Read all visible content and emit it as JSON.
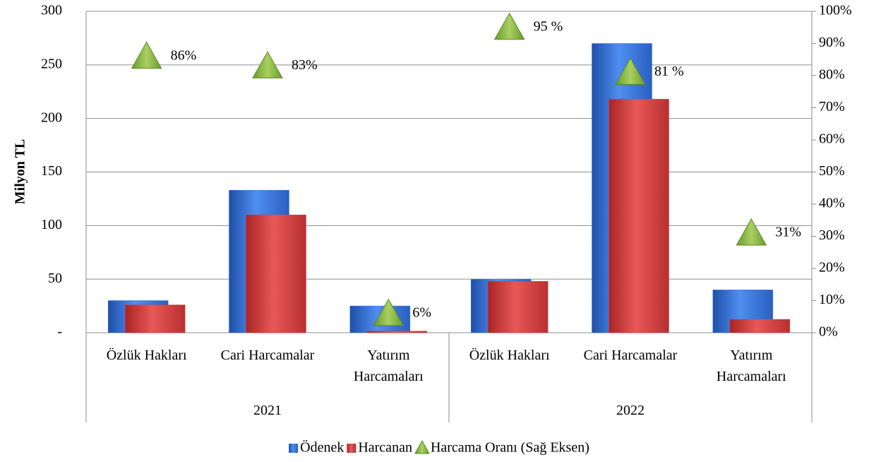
{
  "chart_data": {
    "type": "bar",
    "ylabel": "Milyon TL",
    "categories": [
      "Özlük Hakları",
      "Cari Harcamalar",
      "Yatırım Harcamaları",
      "Özlük Hakları",
      "Cari Harcamalar",
      "Yatırım Harcamaları"
    ],
    "groups": [
      "2021",
      "2022"
    ],
    "series": [
      {
        "name": "Ödenek",
        "color": "#3a78d8",
        "values": [
          30,
          133,
          25,
          50,
          270,
          40
        ]
      },
      {
        "name": "Harcanan",
        "color": "#d94040",
        "values": [
          26,
          110,
          1.5,
          48,
          218,
          12.5
        ]
      },
      {
        "name": "Harcama Oranı (Sağ Eksen)",
        "color": "#8ab84a",
        "axis": "y2",
        "values": [
          86,
          83,
          6,
          95,
          81,
          31
        ],
        "value_labels": [
          "86%",
          "83%",
          "6%",
          "95 %",
          "81 %",
          "31%"
        ]
      }
    ],
    "ylim": [
      0,
      300
    ],
    "yticks": [
      {
        "value": 0,
        "label": "-"
      },
      50,
      100,
      150,
      200,
      250,
      300
    ],
    "y2lim": [
      0,
      100
    ],
    "y2ticks": [
      {
        "value": 0,
        "label": "0%"
      },
      {
        "value": 10,
        "label": "10%"
      },
      {
        "value": 20,
        "label": "20%"
      },
      {
        "value": 30,
        "label": "30%"
      },
      {
        "value": 40,
        "label": "40%"
      },
      {
        "value": 50,
        "label": "50%"
      },
      {
        "value": 60,
        "label": "60%"
      },
      {
        "value": 70,
        "label": "70%"
      },
      {
        "value": 80,
        "label": "80%"
      },
      {
        "value": 90,
        "label": "90%"
      },
      {
        "value": 100,
        "label": "100%"
      }
    ],
    "grid": true
  }
}
